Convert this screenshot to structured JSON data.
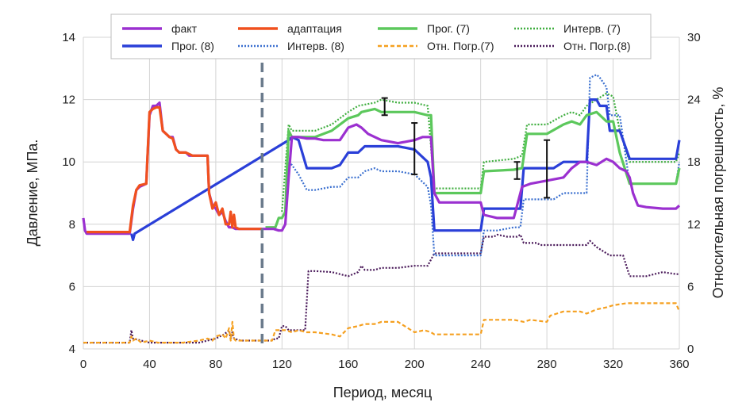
{
  "chart_data": {
    "type": "line",
    "title": "",
    "xlabel": "Период, месяц",
    "ylabel": "Давление, МПа.",
    "ylabel_right": "Относительная погрешность, %",
    "xlim": [
      0,
      360
    ],
    "ylim": [
      4,
      14
    ],
    "ylim_right": [
      0,
      30
    ],
    "x_ticks": [
      "0",
      "40",
      "80",
      "120",
      "160",
      "200",
      "240",
      "280",
      "320",
      "360"
    ],
    "y_ticks": [
      "4",
      "6",
      "8",
      "10",
      "12",
      "14"
    ],
    "y_ticks_right": [
      "0",
      "6",
      "12",
      "18",
      "24",
      "30"
    ],
    "grid": true,
    "legend_position": "top",
    "adaptation_end": 108,
    "series": [
      {
        "name": "факт",
        "axis": "left",
        "color": "#9b30d0",
        "style": "solid",
        "x": [
          0,
          1,
          2,
          28,
          30,
          32,
          34,
          38,
          40,
          42,
          44,
          46,
          48,
          50,
          52,
          54,
          56,
          58,
          60,
          62,
          64,
          66,
          70,
          75,
          76,
          78,
          80,
          82,
          84,
          86,
          88,
          90,
          92,
          94,
          100,
          105,
          110,
          115,
          118,
          120,
          122,
          124,
          126,
          130,
          135,
          140,
          145,
          150,
          155,
          160,
          165,
          168,
          172,
          176,
          180,
          190,
          200,
          205,
          208,
          210,
          212,
          215,
          240,
          242,
          250,
          260,
          265,
          270,
          280,
          290,
          295,
          300,
          304,
          310,
          316,
          320,
          324,
          328,
          330,
          332,
          335,
          340,
          350,
          358,
          360
        ],
        "y": [
          8.2,
          7.8,
          7.7,
          7.7,
          8.5,
          9.1,
          9.2,
          9.3,
          11.5,
          11.8,
          11.8,
          11.9,
          11.0,
          10.9,
          10.8,
          10.8,
          10.4,
          10.3,
          10.3,
          10.3,
          10.2,
          10.2,
          10.2,
          10.2,
          9.0,
          8.6,
          8.5,
          8.3,
          8.4,
          8.1,
          7.9,
          7.9,
          7.85,
          7.85,
          7.85,
          7.85,
          7.85,
          7.85,
          7.8,
          7.8,
          8.0,
          9.5,
          10.8,
          10.8,
          10.75,
          10.75,
          10.7,
          10.7,
          10.7,
          11.1,
          11.2,
          11.1,
          10.9,
          10.8,
          10.7,
          10.6,
          10.7,
          10.8,
          10.8,
          10.8,
          9.0,
          8.7,
          8.7,
          8.3,
          8.2,
          8.2,
          9.2,
          9.3,
          9.4,
          9.5,
          9.8,
          10.0,
          10.0,
          9.9,
          10.1,
          10.0,
          9.8,
          9.7,
          9.5,
          9.0,
          8.6,
          8.55,
          8.5,
          8.5,
          8.6
        ]
      },
      {
        "name": "адаптация",
        "axis": "left",
        "color": "#f0501e",
        "style": "solid",
        "x": [
          2,
          28,
          30,
          32,
          34,
          38,
          40,
          42,
          44,
          46,
          48,
          50,
          52,
          54,
          56,
          58,
          62,
          66,
          70,
          75,
          76,
          78,
          80,
          82,
          84,
          86,
          88,
          89,
          90,
          91,
          92,
          94,
          100,
          108
        ],
        "y": [
          7.75,
          7.75,
          8.6,
          9.1,
          9.25,
          9.3,
          11.6,
          11.7,
          11.75,
          11.75,
          11.0,
          10.9,
          10.8,
          10.75,
          10.4,
          10.3,
          10.3,
          10.2,
          10.2,
          10.2,
          9.0,
          8.5,
          8.7,
          8.3,
          8.5,
          8.0,
          8.0,
          8.4,
          7.9,
          8.3,
          7.9,
          7.85,
          7.85,
          7.85
        ]
      },
      {
        "name": "Прог. (7)",
        "axis": "left",
        "color": "#5cc85c",
        "style": "solid",
        "x": [
          110,
          116,
          118,
          120,
          122,
          124,
          126,
          140,
          150,
          160,
          166,
          168,
          176,
          180,
          190,
          200,
          208,
          210,
          212,
          240,
          242,
          260,
          265,
          268,
          280,
          290,
          295,
          300,
          304,
          310,
          316,
          320,
          324,
          330,
          340,
          358,
          360
        ],
        "y": [
          7.9,
          7.9,
          8.2,
          8.2,
          8.4,
          11.0,
          10.8,
          10.8,
          11.0,
          11.4,
          11.5,
          11.6,
          11.7,
          11.6,
          11.6,
          11.6,
          11.5,
          11.5,
          9.0,
          9.0,
          9.7,
          9.75,
          9.8,
          10.9,
          10.9,
          11.2,
          11.3,
          11.2,
          11.5,
          11.6,
          11.3,
          11.3,
          10.3,
          9.3,
          9.3,
          9.3,
          9.8
        ]
      },
      {
        "name": "Интерв. (7)",
        "axis": "left",
        "color": "#3fae3f",
        "style": "dotted",
        "x": [
          120,
          124,
          126,
          140,
          150,
          160,
          166,
          176,
          180,
          190,
          200,
          208,
          212,
          240,
          242,
          260,
          265,
          268,
          280,
          290,
          295,
          300,
          304,
          310,
          316,
          320,
          324,
          330,
          340,
          358,
          360
        ],
        "y": [
          8.4,
          11.2,
          11.0,
          11.0,
          11.2,
          11.6,
          11.8,
          11.9,
          12.0,
          11.9,
          11.9,
          11.8,
          9.15,
          9.15,
          10.0,
          10.1,
          10.2,
          11.2,
          11.2,
          11.5,
          11.6,
          11.5,
          11.8,
          12.0,
          12.2,
          12.1,
          11.0,
          10.0,
          10.0,
          10.0,
          10.3
        ]
      },
      {
        "name": "Прог. (8)",
        "axis": "left",
        "color": "#2a3fd8",
        "style": "solid",
        "x": [
          29,
          30,
          31,
          124,
          126,
          130,
          135,
          140,
          150,
          155,
          160,
          166,
          170,
          176,
          180,
          190,
          200,
          208,
          210,
          212,
          220,
          230,
          240,
          242,
          250,
          260,
          264,
          266,
          280,
          284,
          290,
          300,
          304,
          306,
          310,
          312,
          316,
          318,
          320,
          324,
          330,
          340,
          358,
          360
        ],
        "y": [
          7.7,
          7.5,
          7.7,
          10.7,
          10.8,
          10.7,
          9.8,
          9.8,
          9.8,
          9.9,
          10.3,
          10.3,
          10.5,
          10.5,
          10.5,
          10.5,
          10.4,
          10.0,
          9.5,
          7.8,
          7.8,
          7.8,
          7.8,
          8.5,
          8.5,
          8.5,
          8.5,
          9.8,
          9.8,
          9.8,
          10.0,
          10.0,
          10.0,
          12.0,
          12.0,
          11.8,
          11.8,
          11.0,
          11.0,
          11.0,
          10.1,
          10.1,
          10.1,
          10.7
        ]
      },
      {
        "name": "Интерв. (8)",
        "axis": "left",
        "color": "#3a6fcf",
        "style": "dotted",
        "x": [
          124,
          126,
          130,
          135,
          140,
          150,
          155,
          160,
          166,
          170,
          176,
          180,
          190,
          200,
          208,
          210,
          212,
          220,
          230,
          240,
          242,
          250,
          260,
          264,
          266,
          280,
          284,
          290,
          300,
          304,
          306,
          310,
          312,
          316,
          318,
          320,
          324,
          330,
          340,
          358,
          360
        ],
        "y": [
          10.0,
          9.9,
          9.6,
          9.1,
          9.1,
          9.2,
          9.2,
          9.5,
          9.5,
          9.7,
          9.8,
          9.7,
          9.7,
          9.6,
          9.2,
          8.6,
          7.0,
          7.0,
          7.0,
          7.0,
          7.8,
          7.8,
          7.9,
          7.9,
          8.8,
          8.8,
          8.8,
          9.0,
          9.0,
          9.0,
          12.7,
          12.8,
          12.7,
          12.4,
          11.5,
          11.5,
          11.5,
          9.3,
          9.3,
          9.3,
          10.0
        ]
      },
      {
        "name": "Отн. Погр.(7)",
        "axis": "right",
        "color": "#f5a020",
        "style": "dashed",
        "x": [
          0,
          28,
          29,
          30,
          32,
          35,
          40,
          45,
          50,
          55,
          60,
          70,
          75,
          78,
          80,
          84,
          86,
          88,
          89,
          90,
          91,
          92,
          95,
          100,
          105,
          110,
          114,
          116,
          118,
          122,
          126,
          130,
          135,
          140,
          150,
          155,
          160,
          166,
          170,
          176,
          180,
          190,
          200,
          206,
          210,
          212,
          220,
          240,
          242,
          260,
          266,
          270,
          280,
          282,
          290,
          300,
          304,
          310,
          316,
          320,
          328,
          340,
          358,
          360
        ],
        "y": [
          0.6,
          0.6,
          1.2,
          0.8,
          1.0,
          0.6,
          0.8,
          0.6,
          0.6,
          0.6,
          0.6,
          0.8,
          1.0,
          0.8,
          1.2,
          1.4,
          1.0,
          2.0,
          0.8,
          2.6,
          1.0,
          0.8,
          0.8,
          0.8,
          0.8,
          0.8,
          0.8,
          1.8,
          1.8,
          1.8,
          1.6,
          1.8,
          1.6,
          1.6,
          1.4,
          1.2,
          2.0,
          2.2,
          2.4,
          2.4,
          2.6,
          2.6,
          1.6,
          1.8,
          1.6,
          1.4,
          1.4,
          1.4,
          2.8,
          2.8,
          2.6,
          2.8,
          2.6,
          3.2,
          3.6,
          3.6,
          3.4,
          3.8,
          4.0,
          4.2,
          4.4,
          4.4,
          4.4,
          3.6
        ]
      },
      {
        "name": "Отн. Погр.(8)",
        "axis": "right",
        "color": "#4a1a5a",
        "style": "dotted",
        "x": [
          0,
          28,
          29,
          30,
          35,
          40,
          50,
          60,
          70,
          80,
          85,
          88,
          89,
          90,
          91,
          95,
          100,
          110,
          114,
          116,
          118,
          120,
          122,
          124,
          126,
          130,
          134,
          136,
          140,
          150,
          160,
          166,
          168,
          170,
          176,
          180,
          190,
          200,
          208,
          210,
          212,
          220,
          230,
          240,
          242,
          248,
          250,
          256,
          262,
          264,
          266,
          274,
          276,
          290,
          300,
          304,
          306,
          310,
          318,
          326,
          330,
          340,
          350,
          358,
          360
        ],
        "y": [
          0.6,
          0.6,
          1.8,
          1.0,
          0.8,
          0.6,
          0.6,
          0.6,
          0.6,
          1.0,
          1.4,
          1.8,
          1.0,
          1.6,
          1.0,
          0.8,
          0.8,
          0.8,
          0.8,
          1.0,
          1.0,
          2.2,
          2.2,
          1.8,
          1.8,
          1.8,
          1.8,
          7.5,
          7.5,
          7.4,
          7.0,
          7.4,
          8.0,
          7.6,
          7.6,
          7.8,
          7.8,
          8.0,
          8.0,
          8.6,
          9.2,
          9.2,
          9.2,
          9.2,
          10.8,
          10.8,
          11.0,
          10.8,
          10.8,
          11.0,
          10.2,
          10.2,
          10.0,
          10.0,
          10.0,
          10.0,
          10.4,
          9.8,
          9.0,
          9.0,
          7.0,
          7.0,
          7.4,
          7.2,
          7.2
        ]
      }
    ],
    "error_bars": [
      {
        "x": 182,
        "y_low": 11.5,
        "y_high": 12.05
      },
      {
        "x": 200,
        "y_low": 9.6,
        "y_high": 11.25
      },
      {
        "x": 262,
        "y_low": 9.45,
        "y_high": 10.0
      },
      {
        "x": 280,
        "y_low": 8.85,
        "y_high": 10.7
      }
    ]
  }
}
